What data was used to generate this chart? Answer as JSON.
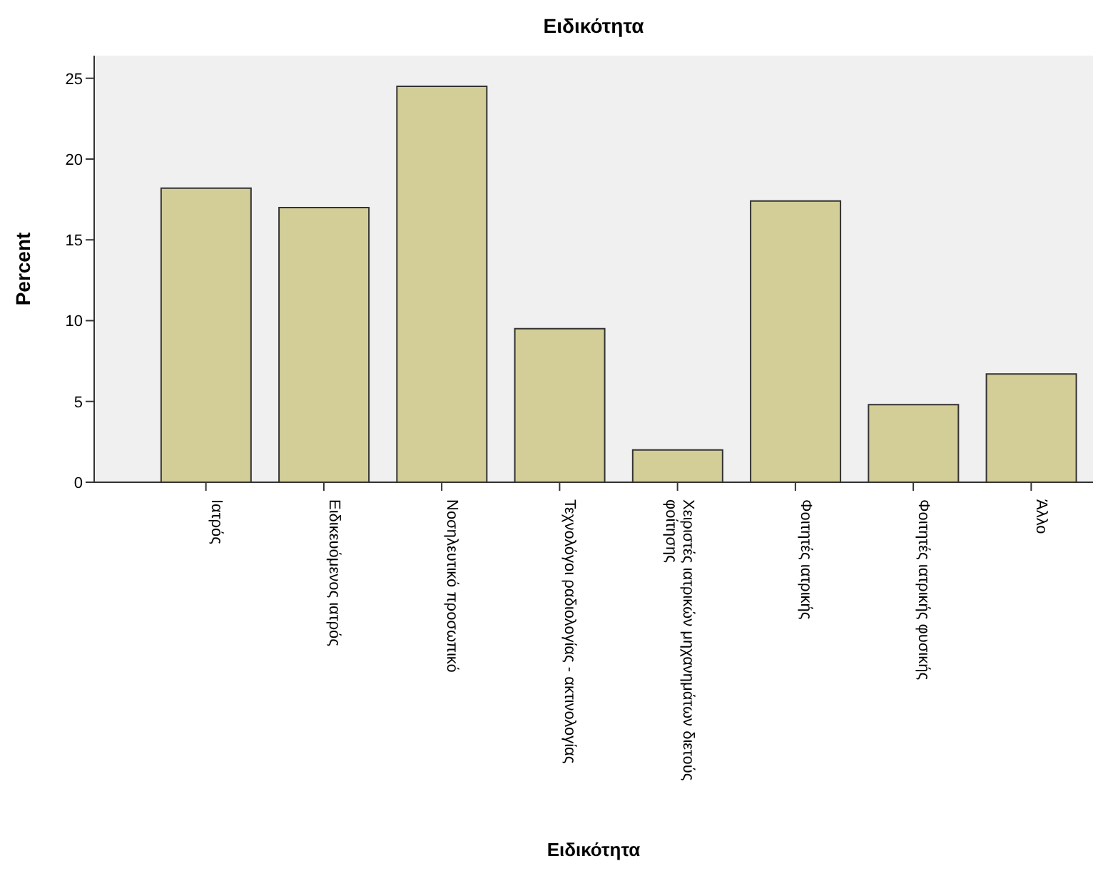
{
  "chart_data": {
    "type": "bar",
    "title": "Ειδικότητα",
    "xlabel": "Ειδικότητα",
    "ylabel": "Percent",
    "categories": [
      "Ιατρός",
      "Ειδικευόμενος ιατρός",
      "Νοσηλευτικό προσωπικό",
      "Τεχνολόγοι ραδιολογίας - ακτινολογίας",
      "Χειριστές ιατρικών μηχανημάτων διετούς φοίτησης",
      "Φοιτητές ιατρικής",
      "Φοιτητές ιατρικής φυσικής",
      "Άλλο"
    ],
    "values": [
      18.2,
      17.0,
      24.5,
      9.5,
      2.0,
      17.4,
      4.8,
      6.7
    ],
    "color": "#d3ce97",
    "ylim": [
      0,
      26.4
    ],
    "yticks": [
      0,
      5,
      10,
      15,
      20,
      25
    ]
  }
}
